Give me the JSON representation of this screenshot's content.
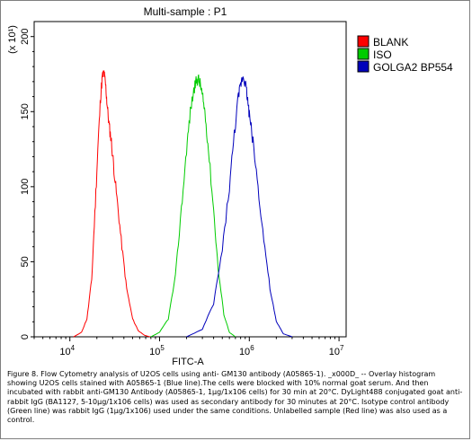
{
  "chart_data": {
    "type": "line",
    "title": "Multi-sample : P1",
    "xlabel": "FITC-A",
    "ylabel": "",
    "y_multiplier_label": "(x 10¹)",
    "x_scale": "log",
    "xlim": [
      4000,
      12000000
    ],
    "ylim": [
      0,
      210
    ],
    "x_ticks": [
      {
        "value": 10000,
        "label": "10",
        "exp": "4"
      },
      {
        "value": 100000,
        "label": "10",
        "exp": "5"
      },
      {
        "value": 1000000,
        "label": "10",
        "exp": "6"
      },
      {
        "value": 10000000,
        "label": "10",
        "exp": "7"
      }
    ],
    "y_ticks": [
      0,
      50,
      100,
      150,
      200
    ],
    "grid": false,
    "legend_position": "top-right",
    "series": [
      {
        "name": "BLANK",
        "color": "#ff0000",
        "x": [
          11000,
          13500,
          15500,
          17500,
          19000,
          20500,
          22000,
          23000,
          24000,
          25000,
          26000,
          27500,
          29000,
          31000,
          34000,
          38000,
          43000,
          50000,
          58000,
          68000,
          78000
        ],
        "y": [
          0,
          3,
          12,
          38,
          82,
          125,
          160,
          173,
          176,
          168,
          155,
          140,
          130,
          112,
          88,
          60,
          32,
          12,
          4,
          1,
          0
        ]
      },
      {
        "name": "ISO",
        "color": "#00cc00",
        "x": [
          80000,
          100000,
          125000,
          150000,
          175000,
          200000,
          220000,
          240000,
          255000,
          270000,
          285000,
          300000,
          320000,
          350000,
          400000,
          450000,
          520000,
          600000,
          700000
        ],
        "y": [
          0,
          3,
          12,
          40,
          85,
          125,
          150,
          164,
          170,
          172,
          168,
          160,
          150,
          125,
          85,
          45,
          15,
          3,
          0
        ]
      },
      {
        "name": "GOLGA2 BP554",
        "color": "#0000bb",
        "x": [
          200000,
          300000,
          400000,
          500000,
          600000,
          680000,
          750000,
          800000,
          850000,
          900000,
          950000,
          1000000,
          1100000,
          1250000,
          1450000,
          1700000,
          2000000,
          2400000,
          3000000
        ],
        "y": [
          0,
          5,
          22,
          58,
          100,
          135,
          158,
          168,
          174,
          170,
          160,
          148,
          130,
          100,
          65,
          32,
          10,
          2,
          0
        ]
      }
    ]
  },
  "caption": "Figure 8. Flow Cytometry analysis of U2OS cells using anti- GM130 antibody (A05865-1). _x000D_ -- Overlay histogram showing U2OS cells stained with A05865-1 (Blue line).The cells were blocked with 10% normal goat serum. And then incubated with rabbit anti-GM130 Antibody (A05865-1, 1µg/1x106 cells) for 30 min at 20°C. DyLight488 conjugated goat anti-rabbit IgG (BA1127, 5-10µg/1x106 cells) was used as secondary antibody for 30 minutes at 20°C. Isotype control antibody (Green line) was rabbit IgG (1µg/1x106) used under the same conditions. Unlabelled sample (Red line) was also used as a control."
}
